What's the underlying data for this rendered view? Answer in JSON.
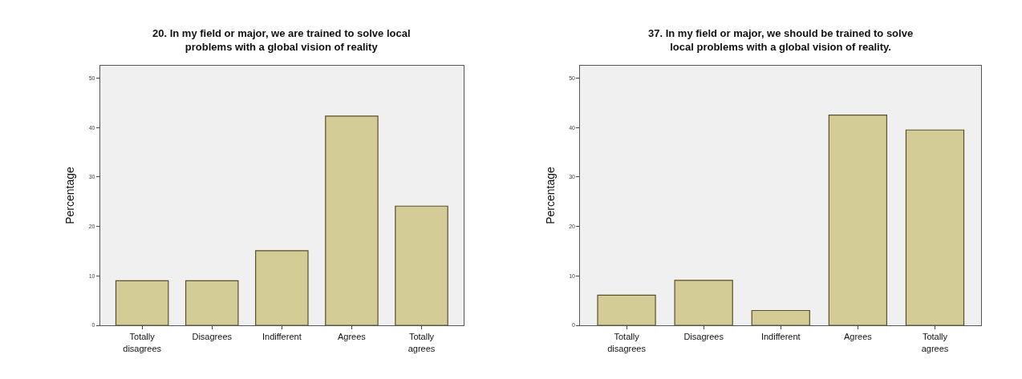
{
  "chart_data": [
    {
      "type": "bar",
      "title": "20. In my field or major, we are trained to solve local\nproblems with a global vision of reality",
      "ylabel": "Percentage",
      "categories": [
        "Totally\ndisagrees",
        "Disagrees",
        "Indifferent",
        "Agrees",
        "Totally\nagrees"
      ],
      "values": [
        9.0,
        9.0,
        15.1,
        42.3,
        24.1
      ],
      "color": "#d4cc96",
      "ylim": [
        0,
        52.5
      ],
      "yticks": [
        0,
        10,
        20,
        30,
        40,
        50
      ],
      "grid": false
    },
    {
      "type": "bar",
      "title": "37. In my field or major, we should be trained to solve\nlocal problems with a global vision of reality.",
      "ylabel": "Percentage",
      "categories": [
        "Totally\ndisagrees",
        "Disagrees",
        "Indifferent",
        "Agrees",
        "Totally\nagrees"
      ],
      "values": [
        6.1,
        9.1,
        3.0,
        42.5,
        39.5
      ],
      "color": "#d4cc96",
      "ylim": [
        0,
        52.5
      ],
      "yticks": [
        0,
        10,
        20,
        30,
        40,
        50
      ],
      "grid": false
    }
  ]
}
